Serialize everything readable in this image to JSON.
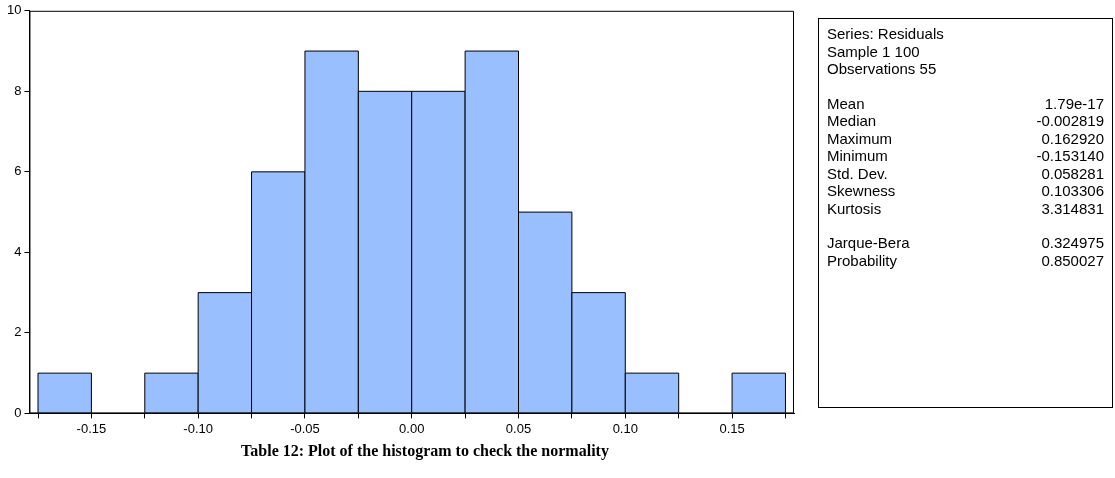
{
  "chart_data": {
    "type": "histogram",
    "bins": [
      -0.175,
      -0.15,
      -0.125,
      -0.1,
      -0.075,
      -0.05,
      -0.025,
      0,
      0.025,
      0.05,
      0.075,
      0.1,
      0.125,
      0.15,
      0.175
    ],
    "values": [
      1,
      0,
      1,
      3,
      6,
      9,
      8,
      8,
      9,
      5,
      3,
      1,
      0,
      1
    ],
    "color": "#99bfff",
    "xlim": [
      -0.179,
      0.179
    ],
    "xticks": [
      {
        "value": -0.175,
        "label": null
      },
      -0.15,
      {
        "value": -0.125,
        "label": null
      },
      {
        "value": -0.1,
        "label": "-0.10"
      },
      {
        "value": -0.075,
        "label": null
      },
      -0.05,
      {
        "value": -0.025,
        "label": null
      },
      {
        "value": 0,
        "label": "0.00"
      },
      {
        "value": 0.025,
        "label": null
      },
      0.05,
      {
        "value": 0.075,
        "label": null
      },
      {
        "value": 0.1,
        "label": "0.10"
      },
      {
        "value": 0.125,
        "label": null
      },
      0.15,
      {
        "value": 0.175,
        "label": null
      }
    ],
    "ylim": [
      0,
      10
    ],
    "yticks": [
      0,
      2,
      4,
      6,
      8,
      10
    ],
    "grid": false,
    "legend": false,
    "annotations": [
      "Series: Residuals",
      "Sample 1 100",
      "Observations 55",
      "Mean",
      "1.79e-17",
      "Median",
      "-0.002819",
      "Maximum",
      "0.162920",
      "Minimum",
      "-0.153140",
      "Std. Dev.",
      "0.058281",
      "Skewness",
      "0.103306",
      "Kurtosis",
      "3.314831",
      "Jarque-Bera",
      "0.324975",
      "Probability",
      "0.850027",
      "Table 12: Plot of the histogram to check the normality"
    ]
  }
}
